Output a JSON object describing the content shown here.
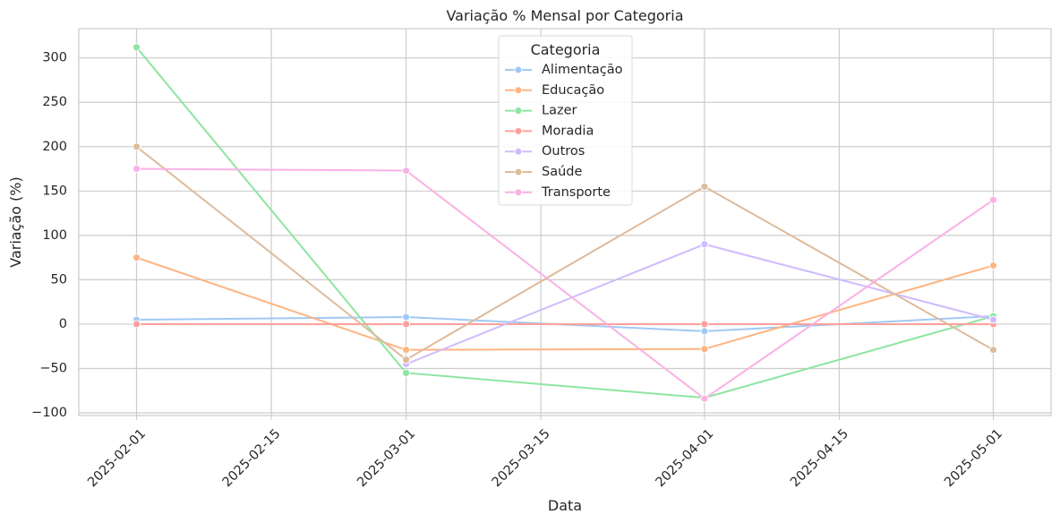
{
  "chart_data": {
    "type": "line",
    "title": "Variação % Mensal por Categoria",
    "xlabel": "Data",
    "ylabel": "Variação (%)",
    "x": [
      "2025-02-01",
      "2025-03-01",
      "2025-04-01",
      "2025-05-01"
    ],
    "xlim": [
      "2025-01-26",
      "2025-05-07"
    ],
    "ylim": [
      -103,
      333
    ],
    "xticks": [
      "2025-02-01",
      "2025-02-15",
      "2025-03-01",
      "2025-03-15",
      "2025-04-01",
      "2025-04-15",
      "2025-05-01"
    ],
    "yticks": [
      -100,
      -50,
      0,
      50,
      100,
      150,
      200,
      250,
      300
    ],
    "ytick_labels": [
      "−100",
      "−50",
      "0",
      "50",
      "100",
      "150",
      "200",
      "250",
      "300"
    ],
    "grid": true,
    "legend": {
      "title": "Categoria",
      "placement": "upper-center"
    },
    "series": [
      {
        "name": "Alimentação",
        "color": "#a1c9f4",
        "values": [
          5,
          8,
          -8,
          9
        ]
      },
      {
        "name": "Educação",
        "color": "#ffb482",
        "values": [
          75,
          -29,
          -28,
          66
        ]
      },
      {
        "name": "Lazer",
        "color": "#8de5a1",
        "values": [
          312,
          -55,
          -83,
          9
        ]
      },
      {
        "name": "Moradia",
        "color": "#ff9f9b",
        "values": [
          0,
          0,
          0,
          0
        ]
      },
      {
        "name": "Outros",
        "color": "#d0bbff",
        "values": [
          null,
          -45,
          90,
          5
        ]
      },
      {
        "name": "Saúde",
        "color": "#debb9b",
        "values": [
          200,
          -40,
          155,
          -29
        ]
      },
      {
        "name": "Transporte",
        "color": "#fab0e4",
        "values": [
          175,
          173,
          -84,
          140
        ]
      }
    ]
  }
}
